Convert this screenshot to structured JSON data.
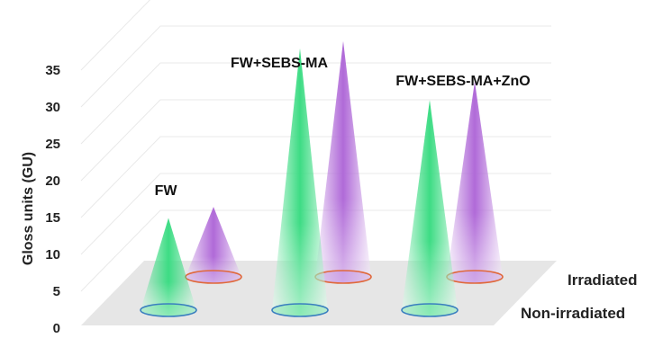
{
  "chart_data": {
    "type": "3d-cone",
    "ylabel": "Gloss units (GU)",
    "ylim": [
      0,
      35
    ],
    "yticks": [
      "0",
      "5",
      "10",
      "15",
      "20",
      "25",
      "30",
      "35"
    ],
    "categories": [
      "FW",
      "FW+SEBS-MA",
      "FW+SEBS-MA+ZnO"
    ],
    "series": [
      {
        "name": "Non-irradiated",
        "values": [
          12.5,
          35.5,
          28.5
        ],
        "color": "#3ddc84"
      },
      {
        "name": "Irradiated",
        "values": [
          9.5,
          32.0,
          26.5
        ],
        "color": "#b06ad8"
      }
    ],
    "grid": true
  }
}
